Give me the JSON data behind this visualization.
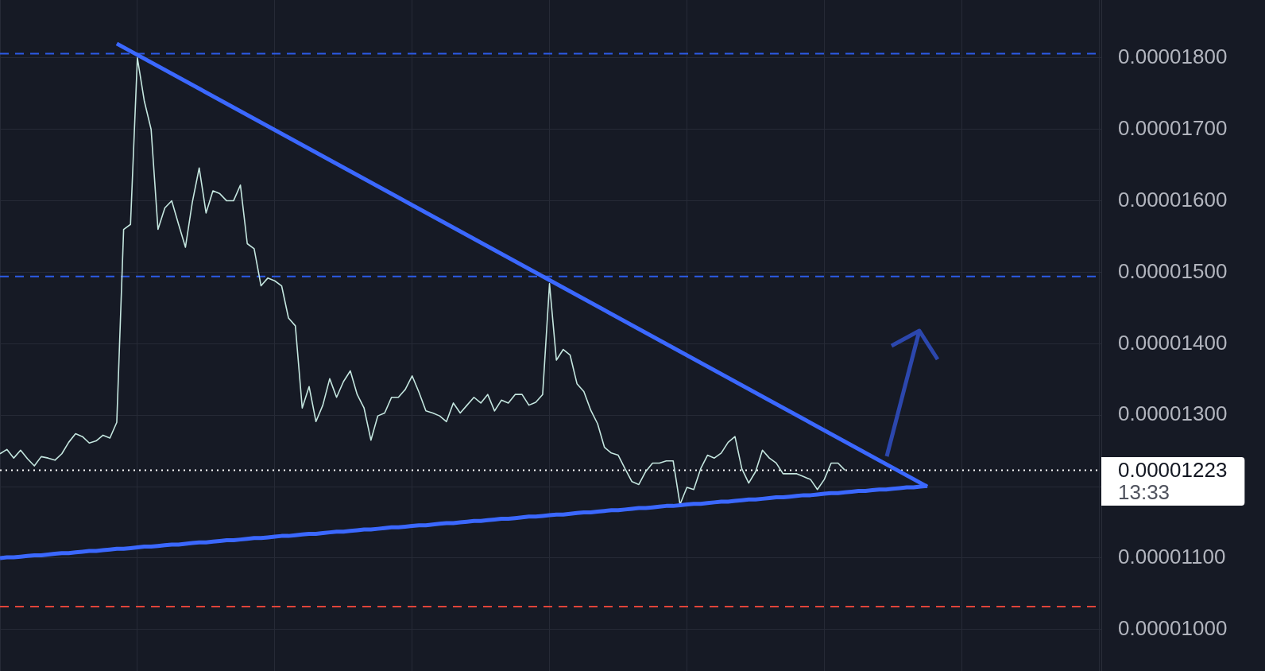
{
  "chart_data": {
    "type": "line",
    "categories": [
      null,
      null,
      null,
      null,
      null,
      null,
      null,
      null,
      null,
      null,
      null,
      null,
      null,
      null,
      null,
      null,
      null,
      null,
      null,
      null,
      null,
      null,
      null,
      null,
      null,
      null,
      null,
      null,
      null,
      null,
      null,
      null,
      null,
      null,
      null,
      null,
      null,
      null,
      null,
      null,
      null,
      null,
      null,
      null,
      null,
      null,
      null,
      null,
      null,
      null,
      null,
      null,
      null,
      null,
      null,
      null,
      null,
      null,
      null,
      null,
      null,
      null,
      null,
      null,
      null,
      null,
      null,
      null,
      null,
      null,
      null,
      null,
      null,
      null,
      null,
      null,
      null,
      null,
      null,
      null,
      null,
      null,
      null,
      null,
      null,
      null,
      null,
      null,
      null,
      null,
      null,
      null,
      null,
      null,
      null,
      null,
      null,
      null,
      null,
      null,
      null,
      null,
      null,
      null,
      null,
      null,
      null,
      null,
      null,
      null,
      null,
      null,
      null,
      null,
      null,
      null,
      null,
      null,
      null,
      null,
      null,
      null,
      null,
      null,
      null,
      null,
      null,
      null,
      null,
      null,
      null,
      null,
      null,
      null,
      null,
      null
    ],
    "series": [
      {
        "color": "#3b68ff",
        "values": [
          1.1e-05,
          1.101e-05,
          1.101e-05,
          1.102e-05,
          1.103e-05,
          1.104e-05,
          1.104e-05,
          1.105e-05,
          1.106e-05,
          1.107e-05,
          1.107e-05,
          1.108e-05,
          1.109e-05,
          1.11e-05,
          1.11e-05,
          1.111e-05,
          1.112e-05,
          1.113e-05,
          1.113e-05,
          1.114e-05,
          1.115e-05,
          1.116e-05,
          1.116e-05,
          1.117e-05,
          1.118e-05,
          1.119e-05,
          1.119e-05,
          1.12e-05,
          1.121e-05,
          1.122e-05,
          1.122e-05,
          1.123e-05,
          1.124e-05,
          1.125e-05,
          1.125e-05,
          1.126e-05,
          1.127e-05,
          1.128e-05,
          1.128e-05,
          1.129e-05,
          1.13e-05,
          1.131e-05,
          1.131e-05,
          1.132e-05,
          1.133e-05,
          1.134e-05,
          1.134e-05,
          1.135e-05,
          1.136e-05,
          1.137e-05,
          1.137e-05,
          1.138e-05,
          1.139e-05,
          1.14e-05,
          1.14e-05,
          1.141e-05,
          1.142e-05,
          1.143e-05,
          1.143e-05,
          1.144e-05,
          1.145e-05,
          1.146e-05,
          1.146e-05,
          1.147e-05,
          1.148e-05,
          1.149e-05,
          1.149e-05,
          1.15e-05,
          1.151e-05,
          1.152e-05,
          1.152e-05,
          1.153e-05,
          1.154e-05,
          1.155e-05,
          1.155e-05,
          1.156e-05,
          1.157e-05,
          1.158e-05,
          1.158e-05,
          1.159e-05,
          1.16e-05,
          1.161e-05,
          1.161e-05,
          1.162e-05,
          1.163e-05,
          1.164e-05,
          1.164e-05,
          1.165e-05,
          1.166e-05,
          1.167e-05,
          1.167e-05,
          1.168e-05,
          1.169e-05,
          1.17e-05,
          1.17e-05,
          1.171e-05,
          1.172e-05,
          1.173e-05,
          1.173e-05,
          1.174e-05,
          1.175e-05,
          1.176e-05,
          1.176e-05,
          1.177e-05,
          1.178e-05,
          1.179e-05,
          1.179e-05,
          1.18e-05,
          1.181e-05,
          1.182e-05,
          1.182e-05,
          1.183e-05,
          1.184e-05,
          1.185e-05,
          1.185e-05,
          1.186e-05,
          1.187e-05,
          1.188e-05,
          1.188e-05,
          1.189e-05,
          1.19e-05,
          1.191e-05,
          1.191e-05,
          1.192e-05,
          1.193e-05,
          1.194e-05,
          1.194e-05,
          1.195e-05,
          1.196e-05,
          1.196e-05,
          1.197e-05,
          1.198e-05,
          1.199e-05,
          1.199e-05,
          1.2e-05,
          1.201e-05
        ]
      },
      {
        "color": "#3b68ff",
        "values": [
          null,
          null,
          null,
          null,
          null,
          null,
          null,
          null,
          null,
          null,
          null,
          null,
          null,
          null,
          null,
          null,
          null,
          1.82e-05,
          null,
          null,
          null,
          null,
          null,
          null,
          null,
          null,
          null,
          null,
          null,
          null,
          null,
          null,
          null,
          null,
          null,
          null,
          null,
          null,
          null,
          null,
          null,
          null,
          null,
          null,
          null,
          null,
          null,
          null,
          null,
          null,
          null,
          null,
          null,
          null,
          null,
          null,
          null,
          null,
          null,
          null,
          null,
          null,
          null,
          null,
          null,
          null,
          null,
          null,
          null,
          null,
          null,
          null,
          null,
          null,
          null,
          null,
          null,
          null,
          null,
          null,
          null,
          null,
          null,
          null,
          null,
          null,
          null,
          null,
          null,
          null,
          null,
          null,
          null,
          null,
          null,
          null,
          null,
          null,
          null,
          null,
          null,
          null,
          null,
          null,
          null,
          null,
          null,
          null,
          null,
          null,
          null,
          null,
          null,
          null,
          null,
          null,
          null,
          null,
          null,
          null,
          null,
          null,
          null,
          null,
          null,
          null,
          null,
          null,
          null,
          null,
          null,
          null,
          null,
          null,
          null,
          1.2e-05
        ]
      },
      {
        "color": "#c4e6df",
        "values": [
          1.246e-05,
          1.252e-05,
          1.24e-05,
          1.251e-05,
          1.239e-05,
          1.229e-05,
          1.242e-05,
          1.24e-05,
          1.237e-05,
          1.246e-05,
          1.262e-05,
          1.274e-05,
          1.27e-05,
          1.261e-05,
          1.264e-05,
          1.272e-05,
          1.268e-05,
          1.29e-05,
          1.56e-05,
          1.567e-05,
          1.8e-05,
          1.74e-05,
          1.7e-05,
          1.56e-05,
          1.59e-05,
          1.6e-05,
          1.567e-05,
          1.535e-05,
          1.598e-05,
          1.646e-05,
          1.583e-05,
          1.614e-05,
          1.61e-05,
          1.6e-05,
          1.6e-05,
          1.622e-05,
          1.54e-05,
          1.533e-05,
          1.481e-05,
          1.492e-05,
          1.488e-05,
          1.481e-05,
          1.436e-05,
          1.425e-05,
          1.31e-05,
          1.34e-05,
          1.291e-05,
          1.314e-05,
          1.351e-05,
          1.325e-05,
          1.347e-05,
          1.362e-05,
          1.329e-05,
          1.31e-05,
          1.265e-05,
          1.299e-05,
          1.303e-05,
          1.325e-05,
          1.325e-05,
          1.336e-05,
          1.355e-05,
          1.332e-05,
          1.306e-05,
          1.303e-05,
          1.299e-05,
          1.291e-05,
          1.317e-05,
          1.303e-05,
          1.314e-05,
          1.325e-05,
          1.317e-05,
          1.329e-05,
          1.306e-05,
          1.321e-05,
          1.317e-05,
          1.329e-05,
          1.329e-05,
          1.314e-05,
          1.318e-05,
          1.329e-05,
          1.484e-05,
          1.377e-05,
          1.392e-05,
          1.384e-05,
          1.344e-05,
          1.333e-05,
          1.307e-05,
          1.288e-05,
          1.255e-05,
          1.247e-05,
          1.244e-05,
          1.225e-05,
          1.207e-05,
          1.203e-05,
          1.221e-05,
          1.233e-05,
          1.233e-05,
          1.236e-05,
          1.236e-05,
          1.175e-05,
          1.199e-05,
          1.196e-05,
          1.225e-05,
          1.244e-05,
          1.24e-05,
          1.247e-05,
          1.262e-05,
          1.27e-05,
          1.225e-05,
          1.205e-05,
          1.221e-05,
          1.251e-05,
          1.24e-05,
          1.233e-05,
          1.218e-05,
          1.218e-05,
          1.218e-05,
          1.214e-05,
          1.21e-05,
          1.196e-05,
          1.21e-05,
          1.233e-05,
          1.233e-05,
          1.223e-05,
          null,
          null,
          null,
          null,
          null,
          null,
          null,
          null,
          null,
          null,
          null,
          null
        ]
      }
    ],
    "ylim": [
      9.42e-06,
      1.881e-05
    ],
    "yticks": [
      {
        "value": 1e-05,
        "label": "0.00001000"
      },
      {
        "value": 1.1e-05,
        "label": "0.00001100"
      },
      {
        "value": 1.2e-05,
        "label": null
      },
      {
        "value": 1.3e-05,
        "label": "0.00001300"
      },
      {
        "value": 1.4e-05,
        "label": "0.00001400"
      },
      {
        "value": 1.5e-05,
        "label": "0.00001500"
      },
      {
        "value": 1.6e-05,
        "label": "0.00001600"
      },
      {
        "value": 1.7e-05,
        "label": "0.00001700"
      },
      {
        "value": 1.8e-05,
        "label": "0.00001800"
      }
    ],
    "grid": true,
    "tick_labels": "y",
    "marker": "none",
    "ref_lines": [
      {
        "axis": "y",
        "value": 1.806e-05,
        "color": "#2c5be6",
        "line_style": "dashed"
      },
      {
        "axis": "y",
        "value": 1.494e-05,
        "color": "#2c5be6",
        "line_style": "dashed"
      },
      {
        "axis": "y",
        "value": 1.032e-05,
        "color": "#e0443a",
        "line_style": "dashed"
      },
      {
        "axis": "y",
        "value": 1.223e-05,
        "label": "0.00001223",
        "color": "#ffffff",
        "line_style": "dotted"
      }
    ],
    "annotations": [
      "13:33"
    ]
  }
}
